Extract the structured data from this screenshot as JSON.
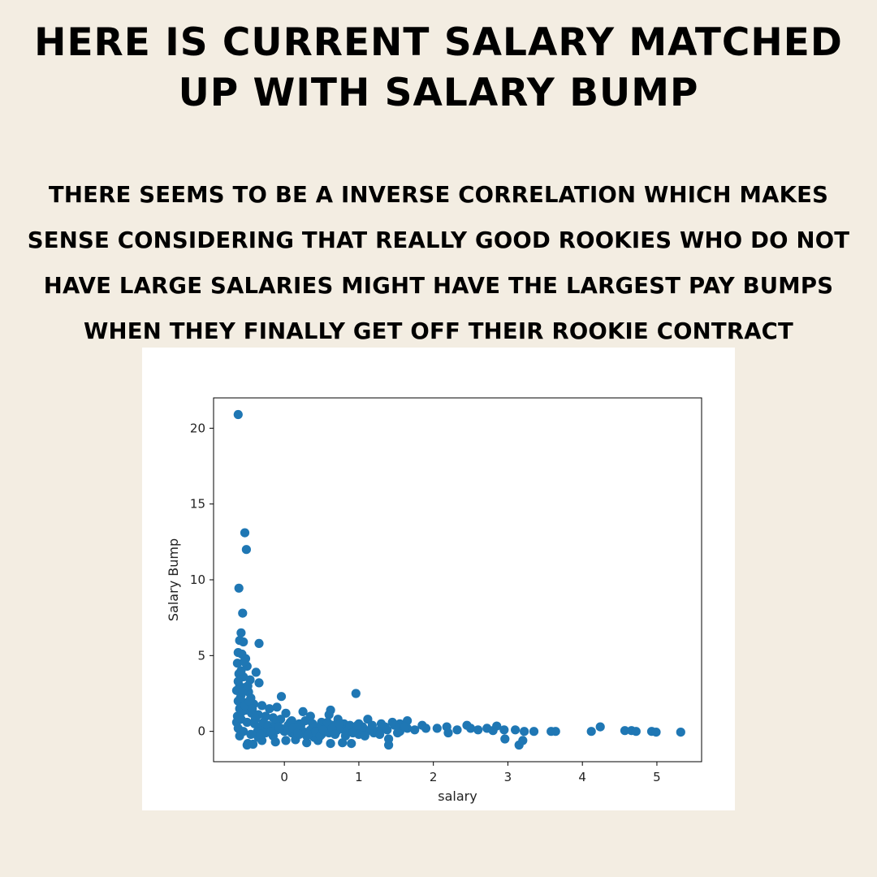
{
  "header": {
    "title": "Here is current salary matched up with salary bump",
    "subtitle": "There seems to be a inverse correlation which makes sense considering that really good rookies who do not have large salaries might have the largest pay bumps when they finally get off their rookie contract"
  },
  "chart_data": {
    "type": "scatter",
    "title": "",
    "xlabel": "salary",
    "ylabel": "Salary Bump",
    "xlim": [
      -0.95,
      5.6
    ],
    "ylim": [
      -2.0,
      22.0
    ],
    "xticks": [
      0,
      1,
      2,
      3,
      4,
      5
    ],
    "yticks": [
      0,
      5,
      10,
      15,
      20
    ],
    "grid": false,
    "color": "#1f77b4",
    "points": [
      [
        -0.62,
        20.9
      ],
      [
        -0.53,
        13.1
      ],
      [
        -0.51,
        12.0
      ],
      [
        -0.61,
        9.45
      ],
      [
        -0.56,
        7.8
      ],
      [
        -0.58,
        6.5
      ],
      [
        -0.6,
        6.0
      ],
      [
        -0.55,
        5.9
      ],
      [
        -0.34,
        5.8
      ],
      [
        -0.62,
        5.2
      ],
      [
        -0.57,
        5.1
      ],
      [
        -0.52,
        4.8
      ],
      [
        -0.63,
        4.5
      ],
      [
        -0.5,
        4.3
      ],
      [
        -0.38,
        3.9
      ],
      [
        -0.61,
        3.8
      ],
      [
        -0.55,
        3.6
      ],
      [
        -0.46,
        3.4
      ],
      [
        -0.34,
        3.2
      ],
      [
        -0.6,
        3.0
      ],
      [
        -0.52,
        2.9
      ],
      [
        -0.64,
        2.7
      ],
      [
        -0.48,
        2.6
      ],
      [
        -0.58,
        2.4
      ],
      [
        -0.45,
        2.2
      ],
      [
        -0.04,
        2.3
      ],
      [
        -0.62,
        2.0
      ],
      [
        -0.54,
        1.9
      ],
      [
        -0.41,
        1.8
      ],
      [
        -0.3,
        1.7
      ],
      [
        -0.2,
        1.5
      ],
      [
        -0.1,
        1.6
      ],
      [
        0.02,
        1.2
      ],
      [
        0.25,
        1.3
      ],
      [
        0.35,
        1.0
      ],
      [
        0.62,
        1.4
      ],
      [
        0.6,
        1.1
      ],
      [
        0.96,
        2.5
      ],
      [
        1.12,
        0.8
      ],
      [
        1.0,
        0.5
      ],
      [
        1.3,
        0.5
      ],
      [
        1.45,
        0.6
      ],
      [
        1.55,
        0.5
      ],
      [
        1.65,
        0.7
      ],
      [
        1.65,
        0.2
      ],
      [
        1.85,
        0.4
      ],
      [
        1.9,
        0.2
      ],
      [
        2.05,
        0.2
      ],
      [
        2.18,
        0.3
      ],
      [
        2.2,
        -0.1
      ],
      [
        2.32,
        0.1
      ],
      [
        2.45,
        0.4
      ],
      [
        2.5,
        0.2
      ],
      [
        2.6,
        0.1
      ],
      [
        2.72,
        0.2
      ],
      [
        2.8,
        0.05
      ],
      [
        2.85,
        0.35
      ],
      [
        2.95,
        0.1
      ],
      [
        2.96,
        -0.5
      ],
      [
        3.1,
        0.1
      ],
      [
        3.15,
        -0.9
      ],
      [
        3.2,
        -0.6
      ],
      [
        3.22,
        0.0
      ],
      [
        3.35,
        0.0
      ],
      [
        3.58,
        0.0
      ],
      [
        3.64,
        0.0
      ],
      [
        4.12,
        0.0
      ],
      [
        4.24,
        0.3
      ],
      [
        4.57,
        0.05
      ],
      [
        4.66,
        0.05
      ],
      [
        4.72,
        0.0
      ],
      [
        4.93,
        0.0
      ],
      [
        4.99,
        -0.05
      ],
      [
        5.32,
        -0.05
      ],
      [
        1.4,
        -0.9
      ],
      [
        1.4,
        -0.5
      ],
      [
        0.9,
        -0.8
      ],
      [
        0.78,
        -0.75
      ],
      [
        0.62,
        -0.8
      ],
      [
        -0.49,
        -0.8
      ],
      [
        -0.5,
        -0.9
      ],
      [
        -0.42,
        -0.85
      ],
      [
        -0.3,
        -0.6
      ],
      [
        -0.12,
        -0.7
      ],
      [
        0.02,
        -0.6
      ],
      [
        0.15,
        -0.55
      ],
      [
        0.3,
        -0.75
      ],
      [
        0.45,
        -0.6
      ],
      [
        1.1,
        0.0
      ],
      [
        1.2,
        -0.1
      ],
      [
        1.3,
        0.2
      ],
      [
        1.55,
        0.0
      ],
      [
        1.75,
        0.1
      ],
      [
        0.72,
        0.8
      ],
      [
        0.8,
        0.5
      ],
      [
        0.9,
        0.3
      ],
      [
        0.5,
        0.6
      ],
      [
        0.4,
        0.3
      ],
      [
        0.2,
        0.5
      ],
      [
        0.1,
        0.7
      ],
      [
        0.05,
        0.4
      ],
      [
        -0.05,
        0.8
      ],
      [
        -0.15,
        0.9
      ],
      [
        -0.25,
        1.0
      ],
      [
        -0.35,
        1.1
      ],
      [
        -0.44,
        1.2
      ],
      [
        -0.52,
        1.4
      ],
      [
        -0.6,
        1.5
      ],
      [
        -0.63,
        1.0
      ],
      [
        -0.58,
        0.8
      ],
      [
        -0.5,
        0.6
      ],
      [
        -0.4,
        0.5
      ],
      [
        -0.3,
        0.3
      ],
      [
        -0.2,
        0.2
      ],
      [
        -0.1,
        0.1
      ],
      [
        0.0,
        0.0
      ],
      [
        0.1,
        -0.1
      ],
      [
        0.2,
        -0.2
      ],
      [
        0.3,
        -0.3
      ],
      [
        0.4,
        -0.4
      ],
      [
        0.5,
        -0.2
      ],
      [
        0.6,
        -0.1
      ],
      [
        0.7,
        0.0
      ],
      [
        0.8,
        0.1
      ],
      [
        0.9,
        0.0
      ],
      [
        1.0,
        -0.2
      ],
      [
        -0.62,
        0.2
      ],
      [
        -0.6,
        -0.3
      ],
      [
        -0.55,
        0.0
      ],
      [
        -0.45,
        -0.2
      ],
      [
        -0.35,
        -0.4
      ],
      [
        -0.25,
        -0.1
      ],
      [
        -0.15,
        -0.3
      ],
      [
        -0.05,
        0.2
      ],
      [
        0.05,
        0.1
      ],
      [
        0.15,
        0.3
      ],
      [
        0.25,
        0.0
      ],
      [
        0.35,
        0.1
      ],
      [
        0.45,
        0.2
      ],
      [
        0.55,
        0.3
      ],
      [
        0.65,
        0.4
      ],
      [
        0.75,
        0.2
      ],
      [
        0.85,
        0.0
      ],
      [
        0.95,
        0.1
      ],
      [
        1.05,
        0.3
      ],
      [
        1.15,
        0.1
      ],
      [
        1.25,
        0.0
      ],
      [
        1.35,
        0.3
      ],
      [
        -0.64,
        0.6
      ],
      [
        -0.61,
        0.9
      ],
      [
        -0.57,
        1.3
      ],
      [
        -0.53,
        1.7
      ],
      [
        -0.59,
        2.2
      ],
      [
        -0.56,
        2.6
      ],
      [
        -0.62,
        3.3
      ],
      [
        -0.58,
        4.0
      ],
      [
        -0.54,
        4.6
      ],
      [
        -0.49,
        3.0
      ],
      [
        -0.47,
        2.0
      ],
      [
        -0.43,
        1.5
      ],
      [
        -0.39,
        0.8
      ],
      [
        -0.36,
        0.0
      ],
      [
        -0.32,
        -0.2
      ],
      [
        -0.28,
        0.6
      ],
      [
        -0.22,
        0.4
      ],
      [
        -0.18,
        0.0
      ],
      [
        -0.12,
        0.5
      ],
      [
        -0.08,
        0.3
      ],
      [
        0.08,
        0.6
      ],
      [
        0.12,
        0.2
      ],
      [
        0.18,
        -0.1
      ],
      [
        0.22,
        0.4
      ],
      [
        0.28,
        0.7
      ],
      [
        0.32,
        -0.2
      ],
      [
        0.38,
        0.5
      ],
      [
        0.42,
        0.0
      ],
      [
        0.48,
        -0.3
      ],
      [
        0.52,
        0.1
      ],
      [
        0.58,
        0.6
      ],
      [
        0.64,
        0.2
      ],
      [
        0.68,
        -0.2
      ],
      [
        0.74,
        0.5
      ],
      [
        0.82,
        -0.3
      ],
      [
        0.88,
        0.4
      ],
      [
        0.92,
        -0.1
      ],
      [
        0.98,
        0.4
      ],
      [
        1.08,
        -0.3
      ],
      [
        1.18,
        0.4
      ],
      [
        1.28,
        -0.2
      ],
      [
        1.38,
        0.1
      ],
      [
        1.48,
        0.4
      ],
      [
        1.52,
        -0.1
      ],
      [
        1.62,
        0.3
      ]
    ]
  }
}
